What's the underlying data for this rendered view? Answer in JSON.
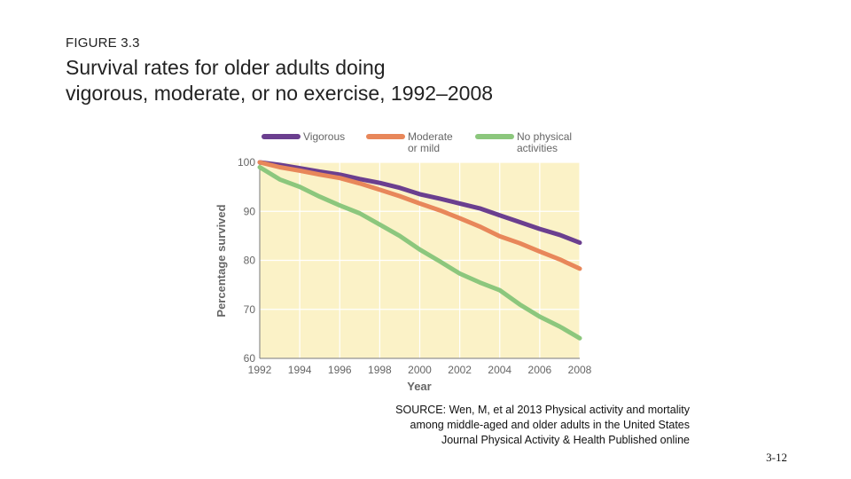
{
  "slide": {
    "figure_label": "FIGURE 3.3",
    "title_line1": "Survival rates for older adults doing",
    "title_line2": "vigorous, moderate, or no exercise, 1992–2008",
    "source_lines": [
      "SOURCE: Wen, M, et al 2013 Physical activity and mortality",
      "among middle-aged and older adults in the United States",
      "Journal Physical Activity & Health Published online"
    ],
    "page_number": "3-12"
  },
  "chart_data": {
    "type": "line",
    "title": "",
    "xlabel": "Year",
    "ylabel": "Percentage survived",
    "xlim": [
      1992,
      2008
    ],
    "ylim": [
      60,
      100
    ],
    "x_ticks": [
      1992,
      1994,
      1996,
      1998,
      2000,
      2002,
      2004,
      2006,
      2008
    ],
    "y_ticks": [
      60,
      70,
      80,
      90,
      100
    ],
    "grid": true,
    "legend_position": "top",
    "x": [
      1992,
      1993,
      1994,
      1995,
      1996,
      1997,
      1998,
      1999,
      2000,
      2001,
      2002,
      2003,
      2004,
      2005,
      2006,
      2007,
      2008
    ],
    "series": [
      {
        "name": "Vigorous",
        "color": "#6b3f8f",
        "values": [
          100,
          99.5,
          98.8,
          98.1,
          97.5,
          96.6,
          95.8,
          94.8,
          93.5,
          92.6,
          91.6,
          90.6,
          89.2,
          87.8,
          86.4,
          85.2,
          83.6
        ]
      },
      {
        "name": "Moderate or mild",
        "color": "#e8875a",
        "values": [
          100,
          99,
          98.3,
          97.5,
          96.8,
          95.7,
          94.4,
          93.1,
          91.6,
          90.2,
          88.6,
          86.9,
          84.9,
          83.5,
          81.8,
          80.2,
          78.3
        ]
      },
      {
        "name": "No physical activities",
        "color": "#8cc77d",
        "values": [
          99,
          96.5,
          95,
          93,
          91.2,
          89.6,
          87.3,
          85,
          82.2,
          79.8,
          77.3,
          75.5,
          73.9,
          71,
          68.5,
          66.5,
          64.1
        ]
      }
    ],
    "legend_labels": [
      [
        "Vigorous"
      ],
      [
        "Moderate",
        "or mild"
      ],
      [
        "No physical",
        "activities"
      ]
    ]
  }
}
